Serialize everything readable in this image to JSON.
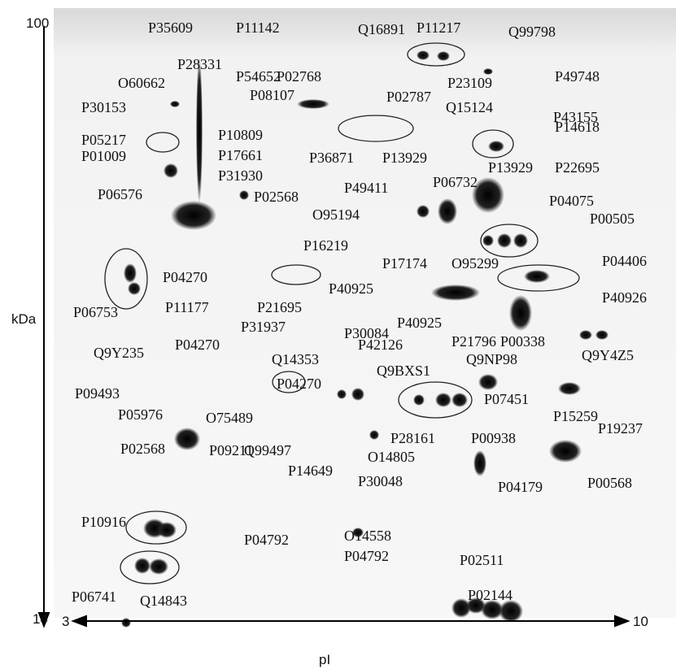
{
  "axis": {
    "y_top": 100,
    "y_bottom": 14,
    "y_label": "kDa",
    "x_left": 3,
    "x_right": 10,
    "x_label": "pI"
  },
  "labels": [
    "P35609",
    "P11142",
    "Q16891",
    "P11217",
    "Q99798",
    "P02768",
    "P28331",
    "P54652",
    "O60662",
    "P23109",
    "P49748",
    "P02787",
    "P08107",
    "P30153",
    "Q15124",
    "P43155",
    "P05217",
    "P10809",
    "P14618",
    "P36871",
    "P01009",
    "P17661",
    "P13929",
    "P13929",
    "P06576",
    "P31930",
    "P06732",
    "P22695",
    "P49411",
    "P02568",
    "P04075",
    "O95194",
    "P00505",
    "P16219",
    "P17174",
    "O95299",
    "P04270",
    "P04406",
    "P06753",
    "P11177",
    "P21695",
    "P30084",
    "P40925",
    "P40926",
    "P40925",
    "P21796",
    "P00338",
    "Q9NP98",
    "Q9Y4Z5",
    "P31937",
    "P04270",
    "Q9Y235",
    "Q14353",
    "P42126",
    "Q9BXS1",
    "P04270",
    "P09493",
    "P07451",
    "P15259",
    "P19237",
    "P05976",
    "O75489",
    "P28161",
    "P00938",
    "P02568",
    "P09211",
    "Q99497",
    "O14805",
    "P14649",
    "P30048",
    "P04179",
    "P00568",
    "P10916",
    "O14558",
    "P04792",
    "P04792",
    "P02511",
    "P02144",
    "P06741",
    "Q14843"
  ]
}
